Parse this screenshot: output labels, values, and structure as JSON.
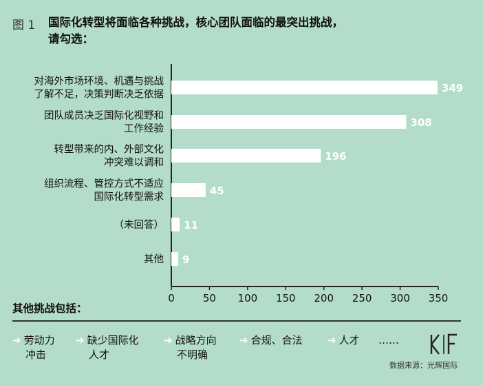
{
  "figure_label": "图 1",
  "title_line1": "国际化转型将面临各种挑战，核心团队面临的最突出挑战，",
  "title_line2": "请勾选：",
  "chart_data": {
    "type": "bar",
    "orientation": "horizontal",
    "categories": [
      [
        "对海外市场环境、机遇与挑战",
        "了解不足，决策判断决乏依据"
      ],
      [
        "团队成员决乏国际化视野和",
        "工作经验"
      ],
      [
        "转型带来的内、外部文化",
        "冲突难以调和"
      ],
      [
        "组织流程、管控方式不适应",
        "国际化转型需求"
      ],
      [
        "（未回答）"
      ],
      [
        "其他"
      ]
    ],
    "values": [
      349,
      308,
      196,
      45,
      11,
      9
    ],
    "xlim": [
      0,
      350
    ],
    "xticks": [
      0,
      50,
      100,
      150,
      200,
      250,
      300,
      350
    ],
    "grid": false,
    "bar_color": "#ffffff",
    "value_label_color": "#ffffff"
  },
  "others_title": "其他挑战包括：",
  "others": [
    {
      "arrow": "➔",
      "line1": "劳动力",
      "line2": "冲击"
    },
    {
      "arrow": "➔",
      "line1": "缺少国际化",
      "line2": "人才"
    },
    {
      "arrow": "➔",
      "line1": "战略方向",
      "line2": "不明确"
    },
    {
      "arrow": "➔",
      "line1": "合规、合法",
      "line2": ""
    },
    {
      "arrow": "➔",
      "line1": "人才",
      "line2": ""
    },
    {
      "arrow": "",
      "line1": "……",
      "line2": ""
    }
  ],
  "source": "数据来源：光辉国际",
  "logo_icon": "kf-logo-icon",
  "colors": {
    "background": "#b3dcca",
    "bars": "#ffffff",
    "text": "#111111"
  }
}
